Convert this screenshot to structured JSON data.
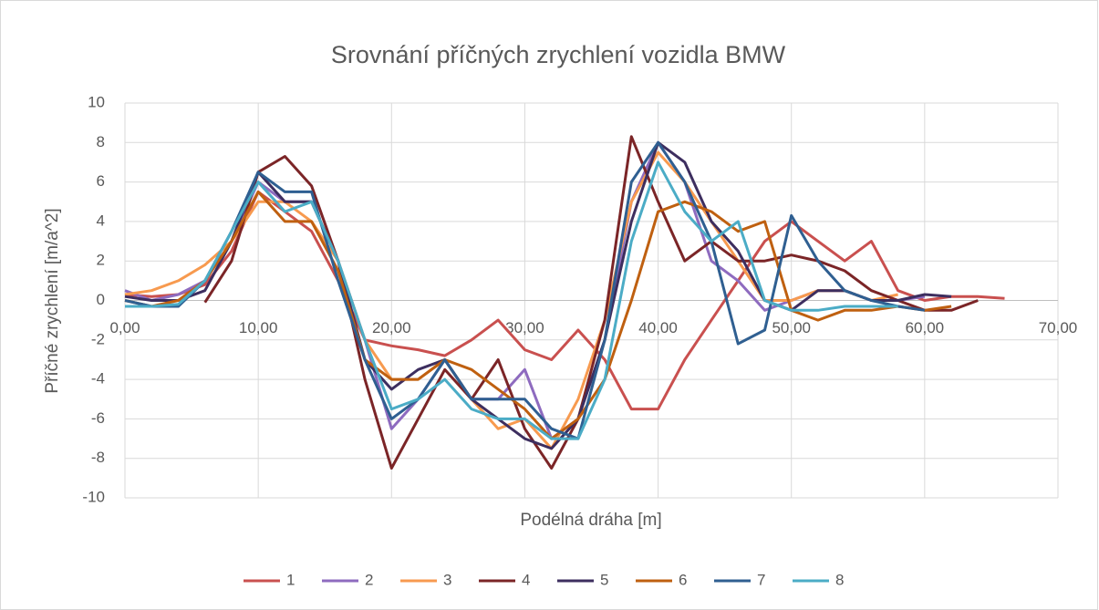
{
  "chart_data": {
    "type": "line",
    "title": "Srovnání příčných zrychlení vozidla BMW",
    "x_label": "Podélná dráha [m]",
    "y_label": "Příčné zrychlení [m/a^2]",
    "x": [
      0,
      2,
      4,
      6,
      8,
      10,
      12,
      14,
      16,
      18,
      20,
      22,
      24,
      26,
      28,
      30,
      32,
      34,
      36,
      38,
      40,
      42,
      44,
      46,
      48,
      50,
      52,
      54,
      56,
      58,
      60,
      62,
      64,
      66
    ],
    "series": [
      {
        "name": "1",
        "color": "#c9504f",
        "values": [
          0.3,
          0.2,
          0.3,
          0.8,
          2.5,
          5.5,
          4.5,
          3.5,
          1,
          -2,
          -2.3,
          -2.5,
          -2.8,
          -2,
          -1,
          -2.5,
          -3,
          -1.5,
          -3,
          -5.5,
          -5.5,
          -3,
          -1,
          1,
          3,
          4,
          3,
          2,
          3,
          0.5,
          0,
          0.2,
          0.2,
          0.1
        ]
      },
      {
        "name": "2",
        "color": "#8e6bbf",
        "values": [
          0.5,
          0,
          0.3,
          1,
          3,
          6,
          5,
          5,
          2,
          -2,
          -6.5,
          -5,
          -3,
          -5,
          -5,
          -3.5,
          -7,
          -6,
          -2,
          5,
          8,
          6,
          2,
          1,
          -0.5,
          0,
          0.5,
          0.5,
          0,
          0,
          0.2,
          null,
          null,
          null
        ]
      },
      {
        "name": "3",
        "color": "#f79a4f",
        "values": [
          0.3,
          0.5,
          1,
          1.8,
          3,
          5,
          5,
          4,
          2,
          -2,
          -4,
          -4,
          -3,
          -5,
          -6.5,
          -6,
          -7.5,
          -5,
          -1,
          5,
          7.5,
          6,
          4,
          2,
          0,
          0,
          0.5,
          0.5,
          0,
          0.3,
          null,
          null,
          null,
          null
        ]
      },
      {
        "name": "4",
        "color": "#7b2527",
        "values": [
          null,
          null,
          null,
          -0.1,
          2,
          6.5,
          7.3,
          5.8,
          2,
          -4,
          -8.5,
          -6,
          -3.5,
          -5,
          -3,
          -6.5,
          -8.5,
          -6,
          -1,
          8.3,
          5,
          2,
          3,
          2,
          2,
          2.3,
          2,
          1.5,
          0.5,
          0,
          -0.5,
          -0.5,
          0,
          null
        ]
      },
      {
        "name": "5",
        "color": "#3d2e5f",
        "values": [
          0.2,
          0,
          0,
          0.5,
          3,
          6.5,
          5,
          5,
          2,
          -3,
          -4.5,
          -3.5,
          -3,
          -5,
          -6,
          -7,
          -7.5,
          -6,
          -2,
          4,
          8,
          7,
          4,
          2.5,
          0,
          -0.5,
          0.5,
          0.5,
          0,
          0,
          0.3,
          0.2,
          null,
          null
        ]
      },
      {
        "name": "6",
        "color": "#bf6010",
        "values": [
          0,
          -0.3,
          0,
          1,
          3,
          5.5,
          4,
          4,
          1.5,
          -3,
          -4,
          -4,
          -3,
          -3.5,
          -4.5,
          -5.5,
          -7,
          -6,
          -4,
          0,
          4.5,
          5,
          4.5,
          3.5,
          4,
          -0.5,
          -1,
          -0.5,
          -0.5,
          -0.3,
          -0.5,
          -0.3,
          null,
          null
        ]
      },
      {
        "name": "7",
        "color": "#2f5f91",
        "values": [
          0,
          -0.3,
          -0.3,
          1,
          3.5,
          6.5,
          5.5,
          5.5,
          1,
          -3,
          -6,
          -5,
          -3,
          -5,
          -5,
          -5,
          -6.5,
          -7,
          -2,
          6,
          8,
          6,
          3,
          -2.2,
          -1.5,
          4.3,
          2,
          0.5,
          0,
          -0.3,
          -0.5,
          null,
          null,
          null
        ]
      },
      {
        "name": "8",
        "color": "#4bacc6",
        "values": [
          -0.3,
          -0.3,
          -0.2,
          1,
          3.5,
          6,
          4.5,
          5,
          2,
          -2,
          -5.5,
          -5,
          -4,
          -5.5,
          -6,
          -6,
          -7,
          -7,
          -4,
          3,
          7,
          4.5,
          3,
          4,
          0,
          -0.5,
          -0.5,
          -0.3,
          -0.3,
          -0.3,
          null,
          null,
          null,
          null
        ]
      }
    ],
    "xlim": [
      0,
      70
    ],
    "xticks": [
      {
        "value": 0,
        "label": "0,00"
      },
      {
        "value": 10,
        "label": "10,00"
      },
      {
        "value": 20,
        "label": "20,00"
      },
      {
        "value": 30,
        "label": "30,00"
      },
      {
        "value": 40,
        "label": "40,00"
      },
      {
        "value": 50,
        "label": "50,00"
      },
      {
        "value": 60,
        "label": "60,00"
      },
      {
        "value": 70,
        "label": "70,00"
      }
    ],
    "ylim": [
      -10,
      10
    ],
    "yticks": [
      -10,
      -8,
      -6,
      -4,
      -2,
      0,
      2,
      4,
      6,
      8,
      10
    ],
    "grid": true,
    "legend": "bottom"
  }
}
